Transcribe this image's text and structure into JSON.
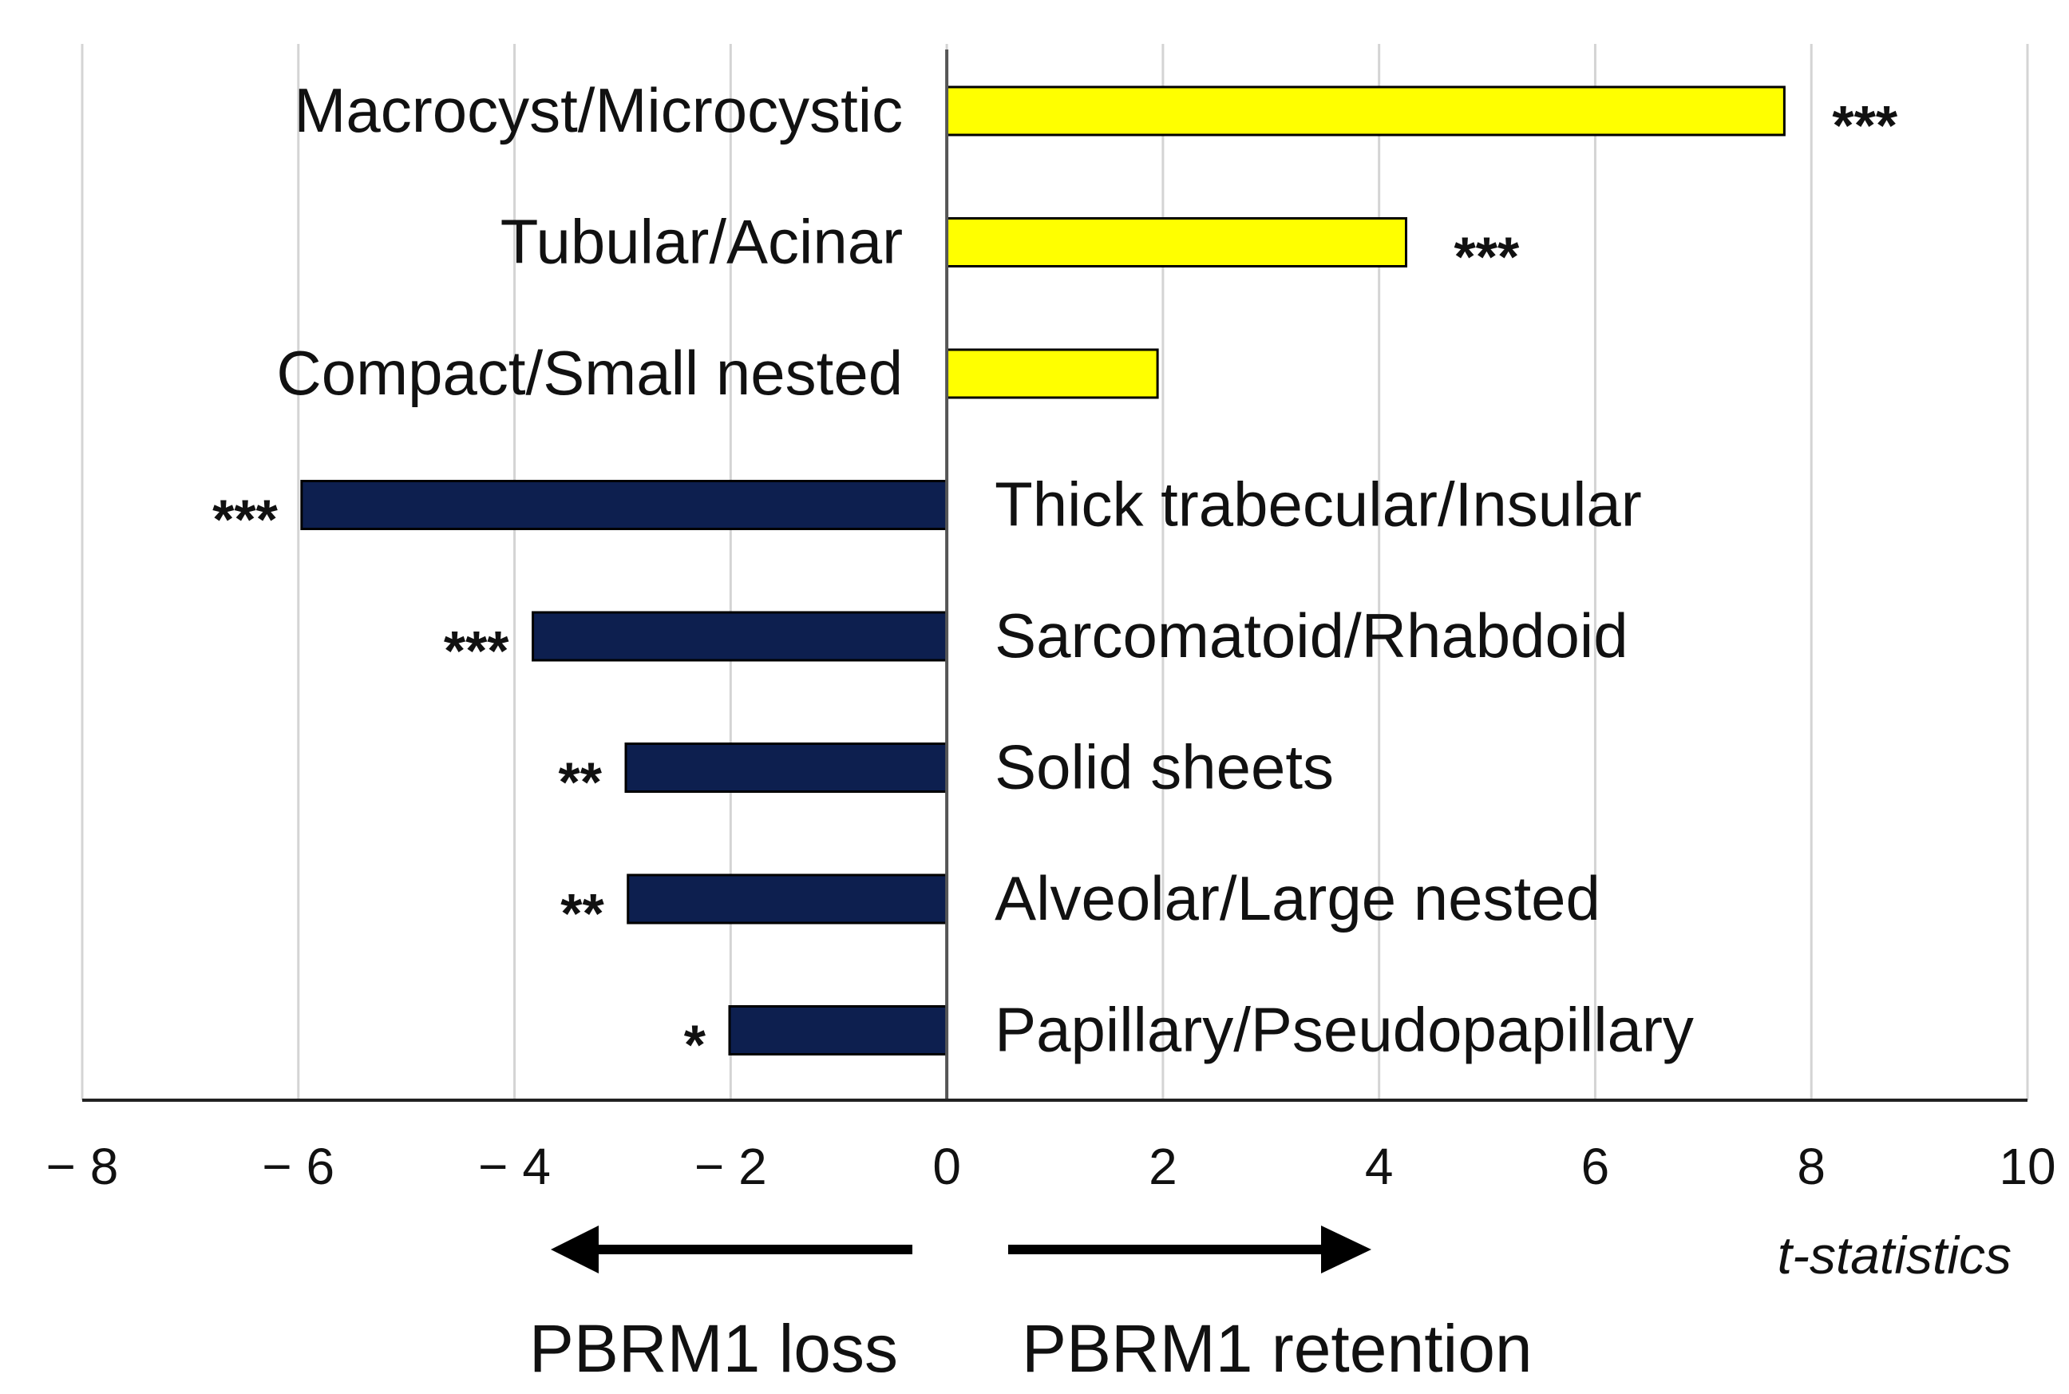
{
  "chart_data": {
    "type": "bar",
    "orientation": "horizontal",
    "categories": [
      "Macrocyst/Microcystic",
      "Tubular/Acinar",
      "Compact/Small nested",
      "Thick trabecular/Insular",
      "Sarcomatoid/Rhabdoid",
      "Solid sheets",
      "Alveolar/Large nested",
      "Papillary/Pseudopapillary"
    ],
    "values": [
      7.75,
      4.25,
      1.95,
      -5.97,
      -3.83,
      -2.97,
      -2.95,
      -2.01
    ],
    "significance": [
      "***",
      "***",
      "",
      "***",
      "***",
      "**",
      "**",
      "*"
    ],
    "xlim": [
      -8,
      10
    ],
    "xticks": [
      -8,
      -6,
      -4,
      -2,
      0,
      2,
      4,
      6,
      8,
      10
    ],
    "xtick_labels": [
      "− 8",
      "− 6",
      "− 4",
      "− 2",
      "0",
      "2",
      "4",
      "6",
      "8",
      "10"
    ],
    "xlabel": "t-statistics",
    "grid": "vertical",
    "colors": {
      "positive": "#ffff00",
      "negative": "#0d1f4f",
      "grid": "#d4d4d4"
    },
    "annotations": {
      "left_arrow": "PBRM1 loss",
      "right_arrow": "PBRM1 retention"
    }
  }
}
